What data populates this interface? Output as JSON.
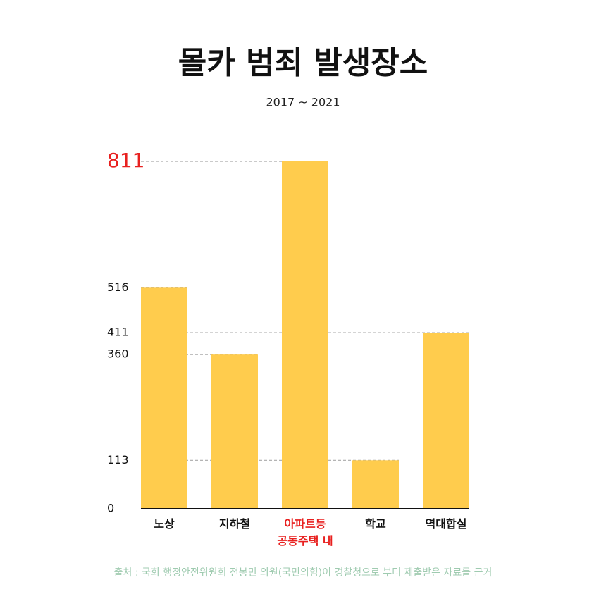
{
  "chart_data": {
    "type": "bar",
    "title": "몰카 범죄 발생장소",
    "subtitle": "2017 ~ 2021",
    "categories": [
      "노상",
      "지하철",
      "아파트등\n공동주택 내",
      "학교",
      "역대합실"
    ],
    "values": [
      516,
      360,
      811,
      113,
      411
    ],
    "color": "#ffcc4d",
    "highlight_color": "#e8201f",
    "ylim": [
      0,
      811
    ],
    "yticks": [
      0,
      113,
      360,
      411,
      516,
      811
    ],
    "grid": true,
    "source": "출처 : 국회 행정안전위원회 전봉민 의원(국민의힘)이 경찰청으로 부터 제출받은 자료를  근거"
  }
}
